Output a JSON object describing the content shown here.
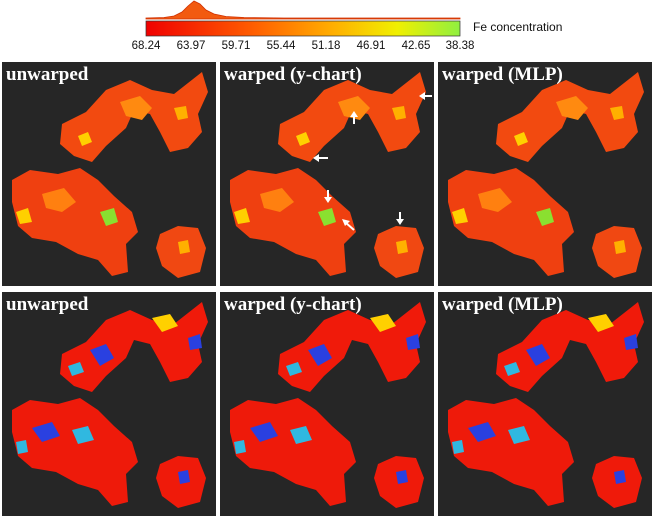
{
  "colorbar": {
    "label": "Fe concentration",
    "ticks": [
      "68.24",
      "63.97",
      "59.71",
      "55.44",
      "51.18",
      "46.91",
      "42.65",
      "38.38"
    ]
  },
  "panels": [
    {
      "title": "unwarped"
    },
    {
      "title": "warped (y-chart)"
    },
    {
      "title": "warped (MLP)"
    },
    {
      "title": "unwarped"
    },
    {
      "title": "warped (y-chart)"
    },
    {
      "title": "warped (MLP)"
    }
  ]
}
